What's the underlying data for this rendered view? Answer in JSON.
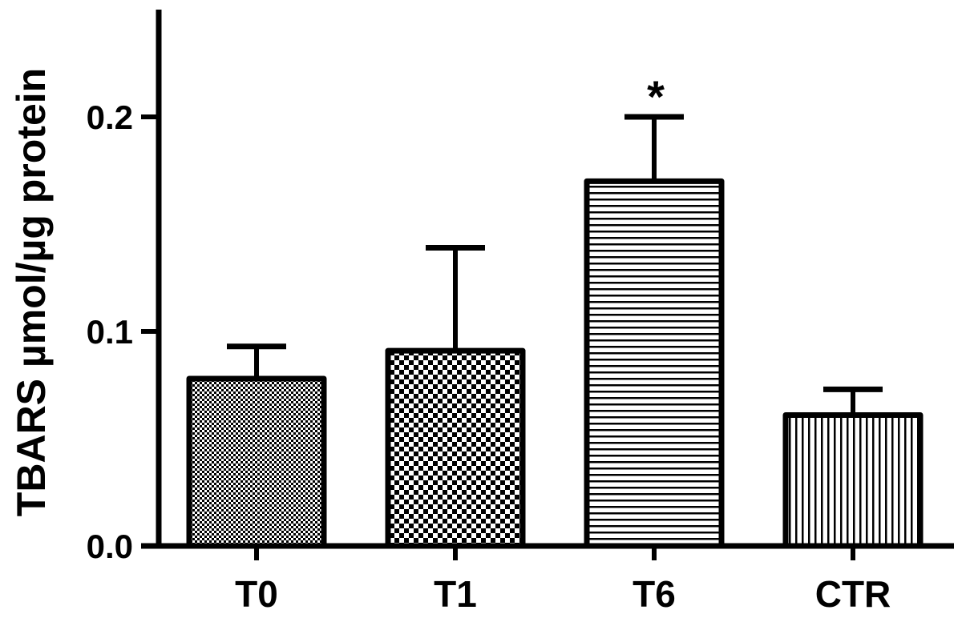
{
  "chart_data": {
    "type": "bar",
    "categories": [
      "T0",
      "T1",
      "T6",
      "CTR"
    ],
    "values": [
      0.078,
      0.091,
      0.17,
      0.061
    ],
    "error_upper": [
      0.093,
      0.139,
      0.2,
      0.073
    ],
    "patterns": [
      "fine-dots",
      "checker",
      "horizontal-lines",
      "vertical-lines"
    ],
    "ylabel": "TBARS µmol/µg protein",
    "xlabel": "",
    "ylim": [
      0,
      0.25
    ],
    "yticks": [
      0.0,
      0.1,
      0.2
    ],
    "ytick_labels": [
      "0.0",
      "0.1",
      "0.2"
    ],
    "annotations": [
      {
        "category": "T6",
        "text": "*"
      }
    ],
    "grid": false,
    "legend": "none"
  }
}
